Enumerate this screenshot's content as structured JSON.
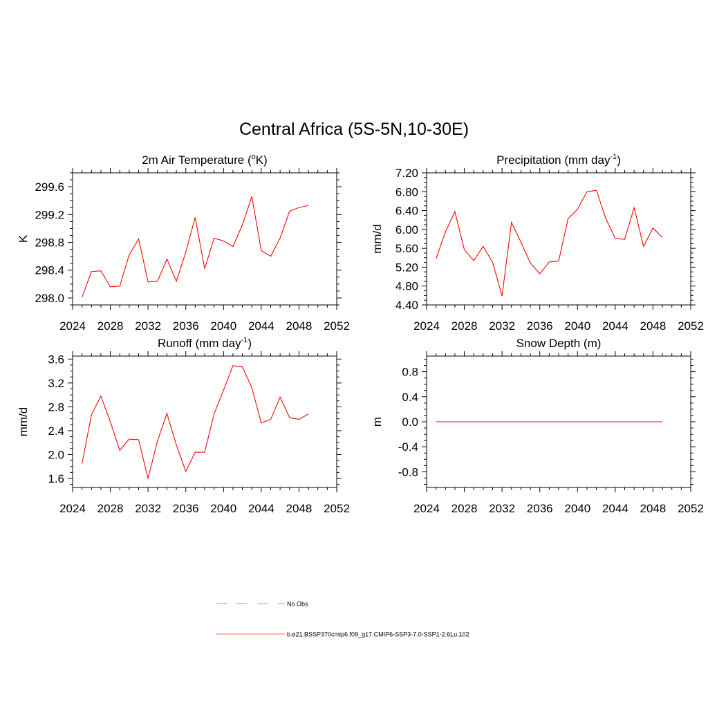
{
  "figure_title": "Central Africa (5S-5N,10-30E)",
  "line_color": "#ff0000",
  "obs_color": "#aaaaee",
  "legend": [
    {
      "label": "No Obs",
      "style": "dashed",
      "color": "#aaaaee"
    },
    {
      "label": "b.e21.BSSP370cmip6.f09_g17.CMIP6-SSP3-7.0-SSP1-2.6Lu.102",
      "style": "solid",
      "color": "#ff8080"
    }
  ],
  "chart_data": [
    {
      "type": "line",
      "title": "2m Air Temperature (",
      "title_sup": "o",
      "title_tail": "K)",
      "ylabel": "K",
      "xlim": [
        2024,
        2052
      ],
      "ylim": [
        297.9,
        299.8
      ],
      "xticks": [
        "2024",
        "2028",
        "2032",
        "2036",
        "2040",
        "2044",
        "2048",
        "2052"
      ],
      "yticks": [
        "298.0",
        "298.4",
        "298.8",
        "299.2",
        "299.6"
      ],
      "x": [
        2025,
        2026,
        2027,
        2028,
        2029,
        2030,
        2031,
        2032,
        2033,
        2034,
        2035,
        2036,
        2037,
        2038,
        2039,
        2040,
        2041,
        2042,
        2043,
        2044,
        2045,
        2046,
        2047,
        2048,
        2049
      ],
      "values": [
        298.01,
        298.38,
        298.39,
        298.16,
        298.17,
        298.62,
        298.85,
        298.23,
        298.24,
        298.56,
        298.24,
        298.66,
        299.16,
        298.42,
        298.86,
        298.82,
        298.74,
        299.05,
        299.46,
        298.68,
        298.6,
        298.86,
        299.25,
        299.3,
        299.33
      ]
    },
    {
      "type": "line",
      "title": "Precipitation (mm day",
      "title_sup": "-1",
      "title_tail": ")",
      "ylabel": "mm/d",
      "xlim": [
        2024,
        2052
      ],
      "ylim": [
        4.4,
        7.2
      ],
      "xticks": [
        "2024",
        "2028",
        "2032",
        "2036",
        "2040",
        "2044",
        "2048",
        "2052"
      ],
      "yticks": [
        "4.40",
        "4.80",
        "5.20",
        "5.60",
        "6.00",
        "6.40",
        "6.80",
        "7.20"
      ],
      "x": [
        2025,
        2026,
        2027,
        2028,
        2029,
        2030,
        2031,
        2032,
        2033,
        2034,
        2035,
        2036,
        2037,
        2038,
        2039,
        2040,
        2041,
        2042,
        2043,
        2044,
        2045,
        2046,
        2047,
        2048,
        2049
      ],
      "values": [
        5.38,
        5.95,
        6.38,
        5.57,
        5.34,
        5.64,
        5.3,
        4.59,
        6.15,
        5.73,
        5.29,
        5.06,
        5.31,
        5.33,
        6.23,
        6.43,
        6.8,
        6.83,
        6.23,
        5.81,
        5.79,
        6.46,
        5.64,
        6.03,
        5.83
      ]
    },
    {
      "type": "line",
      "title": "Runoff (mm day",
      "title_sup": "-1",
      "title_tail": ")",
      "ylabel": "mm/d",
      "xlim": [
        2024,
        2052
      ],
      "ylim": [
        1.45,
        3.65
      ],
      "xticks": [
        "2024",
        "2028",
        "2032",
        "2036",
        "2040",
        "2044",
        "2048",
        "2052"
      ],
      "yticks": [
        "1.6",
        "2.0",
        "2.4",
        "2.8",
        "3.2",
        "3.6"
      ],
      "x": [
        2025,
        2026,
        2027,
        2028,
        2029,
        2030,
        2031,
        2032,
        2033,
        2034,
        2035,
        2036,
        2037,
        2038,
        2039,
        2040,
        2041,
        2042,
        2043,
        2044,
        2045,
        2046,
        2047,
        2048,
        2049
      ],
      "values": [
        1.85,
        2.67,
        2.98,
        2.55,
        2.07,
        2.26,
        2.25,
        1.6,
        2.23,
        2.69,
        2.16,
        1.72,
        2.04,
        2.04,
        2.68,
        3.08,
        3.49,
        3.47,
        3.12,
        2.53,
        2.59,
        2.96,
        2.62,
        2.59,
        2.68
      ]
    },
    {
      "type": "line",
      "title": "Snow Depth (m)",
      "title_sup": "",
      "title_tail": "",
      "ylabel": "m",
      "xlim": [
        2024,
        2052
      ],
      "ylim": [
        -1.05,
        1.05
      ],
      "xticks": [
        "2024",
        "2028",
        "2032",
        "2036",
        "2040",
        "2044",
        "2048",
        "2052"
      ],
      "yticks": [
        "-0.8",
        "-0.4",
        "0.0",
        "0.4",
        "0.8"
      ],
      "x": [
        2025,
        2026,
        2027,
        2028,
        2029,
        2030,
        2031,
        2032,
        2033,
        2034,
        2035,
        2036,
        2037,
        2038,
        2039,
        2040,
        2041,
        2042,
        2043,
        2044,
        2045,
        2046,
        2047,
        2048,
        2049
      ],
      "values": [
        0,
        0,
        0,
        0,
        0,
        0,
        0,
        0,
        0,
        0,
        0,
        0,
        0,
        0,
        0,
        0,
        0,
        0,
        0,
        0,
        0,
        0,
        0,
        0,
        0
      ]
    }
  ]
}
